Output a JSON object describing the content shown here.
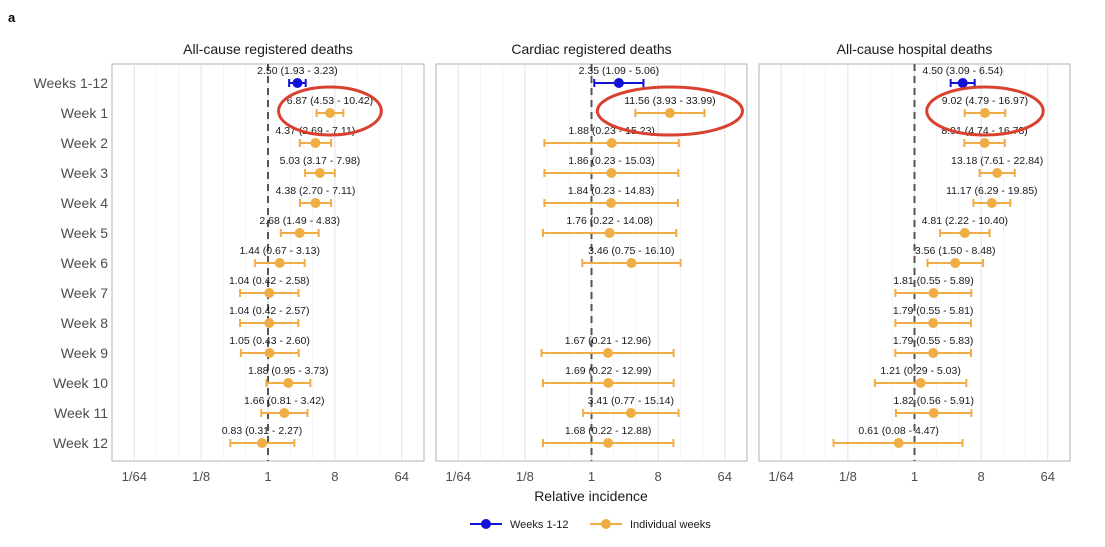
{
  "figure_label": "a",
  "chart_data": {
    "type": "forest",
    "xlabel": "Relative incidence",
    "x_scale": "log2",
    "xlim": [
      0.0078125,
      128
    ],
    "x_ticks": [
      0.015625,
      0.125,
      1,
      8,
      64
    ],
    "x_tick_labels": [
      "1/64",
      "1/8",
      "1",
      "8",
      "64"
    ],
    "reference_line": 1,
    "rows": [
      "Weeks 1-12",
      "Week 1",
      "Week 2",
      "Week 3",
      "Week 4",
      "Week 5",
      "Week 6",
      "Week 7",
      "Week 8",
      "Week 9",
      "Week 10",
      "Week 11",
      "Week 12"
    ],
    "colors": {
      "Weeks 1-12": "#1212d6",
      "Individual weeks": "#f0ad45",
      "highlight": "#d9412e"
    },
    "legend": {
      "position": "bottom",
      "entries": [
        {
          "name": "Weeks 1-12",
          "color": "#1212d6"
        },
        {
          "name": "Individual weeks",
          "color": "#f0ad45"
        }
      ]
    },
    "panels": [
      {
        "title": "All-cause registered deaths",
        "highlight_row": "Week 1",
        "estimates": [
          {
            "row": "Weeks 1-12",
            "group": "Weeks 1-12",
            "est": 2.5,
            "lo": 1.93,
            "hi": 3.23,
            "label": "2.50 (1.93 - 3.23)"
          },
          {
            "row": "Week 1",
            "group": "Individual weeks",
            "est": 6.87,
            "lo": 4.53,
            "hi": 10.42,
            "label": "6.87 (4.53 - 10.42)"
          },
          {
            "row": "Week 2",
            "group": "Individual weeks",
            "est": 4.37,
            "lo": 2.69,
            "hi": 7.11,
            "label": "4.37 (2.69 - 7.11)"
          },
          {
            "row": "Week 3",
            "group": "Individual weeks",
            "est": 5.03,
            "lo": 3.17,
            "hi": 7.98,
            "label": "5.03 (3.17 - 7.98)"
          },
          {
            "row": "Week 4",
            "group": "Individual weeks",
            "est": 4.38,
            "lo": 2.7,
            "hi": 7.11,
            "label": "4.38 (2.70 - 7.11)"
          },
          {
            "row": "Week 5",
            "group": "Individual weeks",
            "est": 2.68,
            "lo": 1.49,
            "hi": 4.83,
            "label": "2.68 (1.49 - 4.83)"
          },
          {
            "row": "Week 6",
            "group": "Individual weeks",
            "est": 1.44,
            "lo": 0.67,
            "hi": 3.13,
            "label": "1.44 (0.67 - 3.13)"
          },
          {
            "row": "Week 7",
            "group": "Individual weeks",
            "est": 1.04,
            "lo": 0.42,
            "hi": 2.58,
            "label": "1.04 (0.42 - 2.58)"
          },
          {
            "row": "Week 8",
            "group": "Individual weeks",
            "est": 1.04,
            "lo": 0.42,
            "hi": 2.57,
            "label": "1.04 (0.42 - 2.57)"
          },
          {
            "row": "Week 9",
            "group": "Individual weeks",
            "est": 1.05,
            "lo": 0.43,
            "hi": 2.6,
            "label": "1.05 (0.43 - 2.60)"
          },
          {
            "row": "Week 10",
            "group": "Individual weeks",
            "est": 1.88,
            "lo": 0.95,
            "hi": 3.73,
            "label": "1.88 (0.95 - 3.73)"
          },
          {
            "row": "Week 11",
            "group": "Individual weeks",
            "est": 1.66,
            "lo": 0.81,
            "hi": 3.42,
            "label": "1.66 (0.81 - 3.42)"
          },
          {
            "row": "Week 12",
            "group": "Individual weeks",
            "est": 0.83,
            "lo": 0.31,
            "hi": 2.27,
            "label": "0.83 (0.31 - 2.27)"
          }
        ]
      },
      {
        "title": "Cardiac registered deaths",
        "highlight_row": "Week 1",
        "estimates": [
          {
            "row": "Weeks 1-12",
            "group": "Weeks 1-12",
            "est": 2.35,
            "lo": 1.09,
            "hi": 5.06,
            "label": "2.35 (1.09 - 5.06)"
          },
          {
            "row": "Week 1",
            "group": "Individual weeks",
            "est": 11.56,
            "lo": 3.93,
            "hi": 33.99,
            "label": "11.56 (3.93 - 33.99)"
          },
          {
            "row": "Week 2",
            "group": "Individual weeks",
            "est": 1.88,
            "lo": 0.23,
            "hi": 15.23,
            "label": "1.88 (0.23 - 15.23)"
          },
          {
            "row": "Week 3",
            "group": "Individual weeks",
            "est": 1.86,
            "lo": 0.23,
            "hi": 15.03,
            "label": "1.86 (0.23 - 15.03)"
          },
          {
            "row": "Week 4",
            "group": "Individual weeks",
            "est": 1.84,
            "lo": 0.23,
            "hi": 14.83,
            "label": "1.84 (0.23 - 14.83)"
          },
          {
            "row": "Week 5",
            "group": "Individual weeks",
            "est": 1.76,
            "lo": 0.22,
            "hi": 14.08,
            "label": "1.76 (0.22 - 14.08)"
          },
          {
            "row": "Week 6",
            "group": "Individual weeks",
            "est": 3.46,
            "lo": 0.75,
            "hi": 16.1,
            "label": "3.46 (0.75 - 16.10)"
          },
          {
            "row": "Week 9",
            "group": "Individual weeks",
            "est": 1.67,
            "lo": 0.21,
            "hi": 12.96,
            "label": "1.67 (0.21 - 12.96)"
          },
          {
            "row": "Week 10",
            "group": "Individual weeks",
            "est": 1.69,
            "lo": 0.22,
            "hi": 12.99,
            "label": "1.69 (0.22 - 12.99)"
          },
          {
            "row": "Week 11",
            "group": "Individual weeks",
            "est": 3.41,
            "lo": 0.77,
            "hi": 15.14,
            "label": "3.41 (0.77 - 15.14)"
          },
          {
            "row": "Week 12",
            "group": "Individual weeks",
            "est": 1.68,
            "lo": 0.22,
            "hi": 12.88,
            "label": "1.68 (0.22 - 12.88)"
          }
        ]
      },
      {
        "title": "All-cause hospital deaths",
        "highlight_row": "Week 1",
        "estimates": [
          {
            "row": "Weeks 1-12",
            "group": "Weeks 1-12",
            "est": 4.5,
            "lo": 3.09,
            "hi": 6.54,
            "label": "4.50 (3.09 - 6.54)"
          },
          {
            "row": "Week 1",
            "group": "Individual weeks",
            "est": 9.02,
            "lo": 4.79,
            "hi": 16.97,
            "label": "9.02 (4.79 - 16.97)"
          },
          {
            "row": "Week 2",
            "group": "Individual weeks",
            "est": 8.91,
            "lo": 4.74,
            "hi": 16.73,
            "label": "8.91 (4.74 - 16.73)"
          },
          {
            "row": "Week 3",
            "group": "Individual weeks",
            "est": 13.18,
            "lo": 7.61,
            "hi": 22.84,
            "label": "13.18 (7.61 - 22.84)"
          },
          {
            "row": "Week 4",
            "group": "Individual weeks",
            "est": 11.17,
            "lo": 6.29,
            "hi": 19.85,
            "label": "11.17 (6.29 - 19.85)"
          },
          {
            "row": "Week 5",
            "group": "Individual weeks",
            "est": 4.81,
            "lo": 2.22,
            "hi": 10.4,
            "label": "4.81 (2.22 - 10.40)"
          },
          {
            "row": "Week 6",
            "group": "Individual weeks",
            "est": 3.56,
            "lo": 1.5,
            "hi": 8.48,
            "label": "3.56 (1.50 - 8.48)"
          },
          {
            "row": "Week 7",
            "group": "Individual weeks",
            "est": 1.81,
            "lo": 0.55,
            "hi": 5.89,
            "label": "1.81 (0.55 - 5.89)"
          },
          {
            "row": "Week 8",
            "group": "Individual weeks",
            "est": 1.79,
            "lo": 0.55,
            "hi": 5.81,
            "label": "1.79 (0.55 - 5.81)"
          },
          {
            "row": "Week 9",
            "group": "Individual weeks",
            "est": 1.79,
            "lo": 0.55,
            "hi": 5.83,
            "label": "1.79 (0.55 - 5.83)"
          },
          {
            "row": "Week 10",
            "group": "Individual weeks",
            "est": 1.21,
            "lo": 0.29,
            "hi": 5.03,
            "label": "1.21 (0.29 - 5.03)"
          },
          {
            "row": "Week 11",
            "group": "Individual weeks",
            "est": 1.82,
            "lo": 0.56,
            "hi": 5.91,
            "label": "1.82 (0.56 - 5.91)"
          },
          {
            "row": "Week 12",
            "group": "Individual weeks",
            "est": 0.61,
            "lo": 0.08,
            "hi": 4.47,
            "label": "0.61 (0.08 - 4.47)"
          }
        ]
      }
    ]
  }
}
